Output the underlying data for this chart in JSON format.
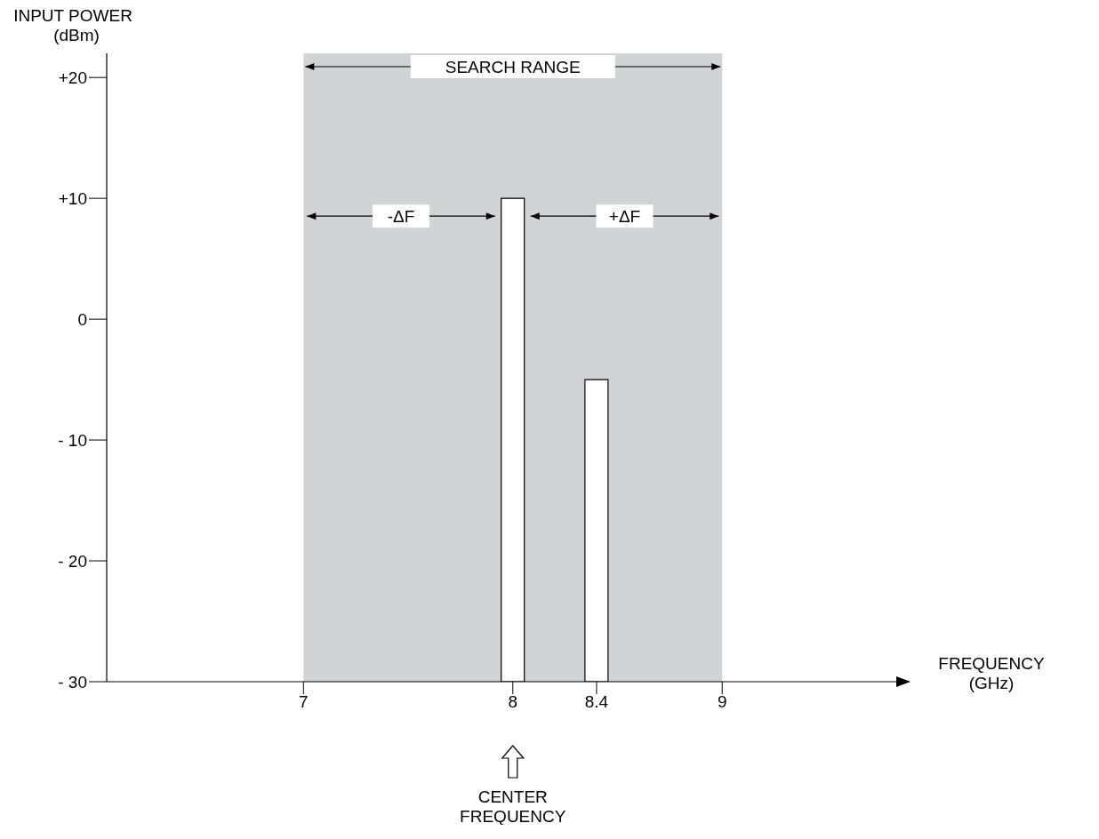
{
  "chart_data": {
    "type": "bar",
    "xlabel": "FREQUENCY (GHz)",
    "ylabel": "INPUT POWER (dBm)",
    "x": [
      8,
      8.4
    ],
    "values": [
      40,
      25
    ],
    "base": [
      -30,
      -30
    ],
    "color": "#ffffff",
    "xlim": [
      6.06,
      9.84
    ],
    "xticks": [
      7,
      8,
      {
        "value": 8.4,
        "label": "8.4"
      },
      9
    ],
    "ylim": [
      -30,
      22
    ],
    "yticks": [
      {
        "value": 20,
        "label": "+20"
      },
      {
        "value": 10,
        "label": "+10"
      },
      0,
      {
        "value": -10,
        "label": "- 10"
      },
      {
        "value": -20,
        "label": "- 20"
      },
      {
        "value": -30,
        "label": "- 30"
      }
    ],
    "bands": [
      {
        "axis": "x",
        "from": 7,
        "to": 9,
        "label": "SEARCH RANGE",
        "color": "#d1d3d4"
      }
    ],
    "annotations": [
      "-ΔF",
      "+ΔF",
      "CENTER FREQUENCY"
    ],
    "grid": false,
    "legend": false
  }
}
